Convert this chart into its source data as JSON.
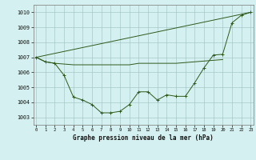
{
  "title": "Graphe pression niveau de la mer (hPa)",
  "background_color": "#d5f0f0",
  "line_color": "#2d5a1b",
  "ylim": [
    1002.5,
    1010.5
  ],
  "yticks": [
    1003,
    1004,
    1005,
    1006,
    1007,
    1008,
    1009,
    1010
  ],
  "xlim": [
    -0.3,
    23.3
  ],
  "xticks": [
    0,
    1,
    2,
    3,
    4,
    5,
    6,
    7,
    8,
    9,
    10,
    11,
    12,
    13,
    14,
    15,
    16,
    17,
    18,
    19,
    20,
    21,
    22,
    23
  ],
  "line1_straight": {
    "x": [
      0,
      23
    ],
    "y": [
      1007.0,
      1010.0
    ]
  },
  "line2_flat": {
    "x": [
      0,
      1,
      2,
      3,
      4,
      5,
      6,
      7,
      8,
      9,
      10,
      11,
      12,
      13,
      14,
      15,
      16,
      17,
      18,
      19,
      20
    ],
    "y": [
      1007.0,
      1006.7,
      1006.6,
      1006.55,
      1006.5,
      1006.5,
      1006.5,
      1006.5,
      1006.5,
      1006.5,
      1006.5,
      1006.6,
      1006.6,
      1006.6,
      1006.6,
      1006.6,
      1006.65,
      1006.7,
      1006.75,
      1006.8,
      1006.85
    ]
  },
  "line3_main": {
    "x": [
      0,
      1,
      2,
      3,
      4,
      5,
      6,
      7,
      8,
      9,
      10,
      11,
      12,
      13,
      14,
      15,
      16,
      17,
      18,
      19,
      20,
      21,
      22,
      23
    ],
    "y": [
      1007.0,
      1006.7,
      1006.6,
      1005.8,
      1004.35,
      1004.15,
      1003.85,
      1003.3,
      1003.3,
      1003.4,
      1003.85,
      1004.7,
      1004.7,
      1004.15,
      1004.5,
      1004.4,
      1004.4,
      1005.3,
      1006.3,
      1007.15,
      1007.2,
      1009.3,
      1009.8,
      1010.0
    ]
  }
}
